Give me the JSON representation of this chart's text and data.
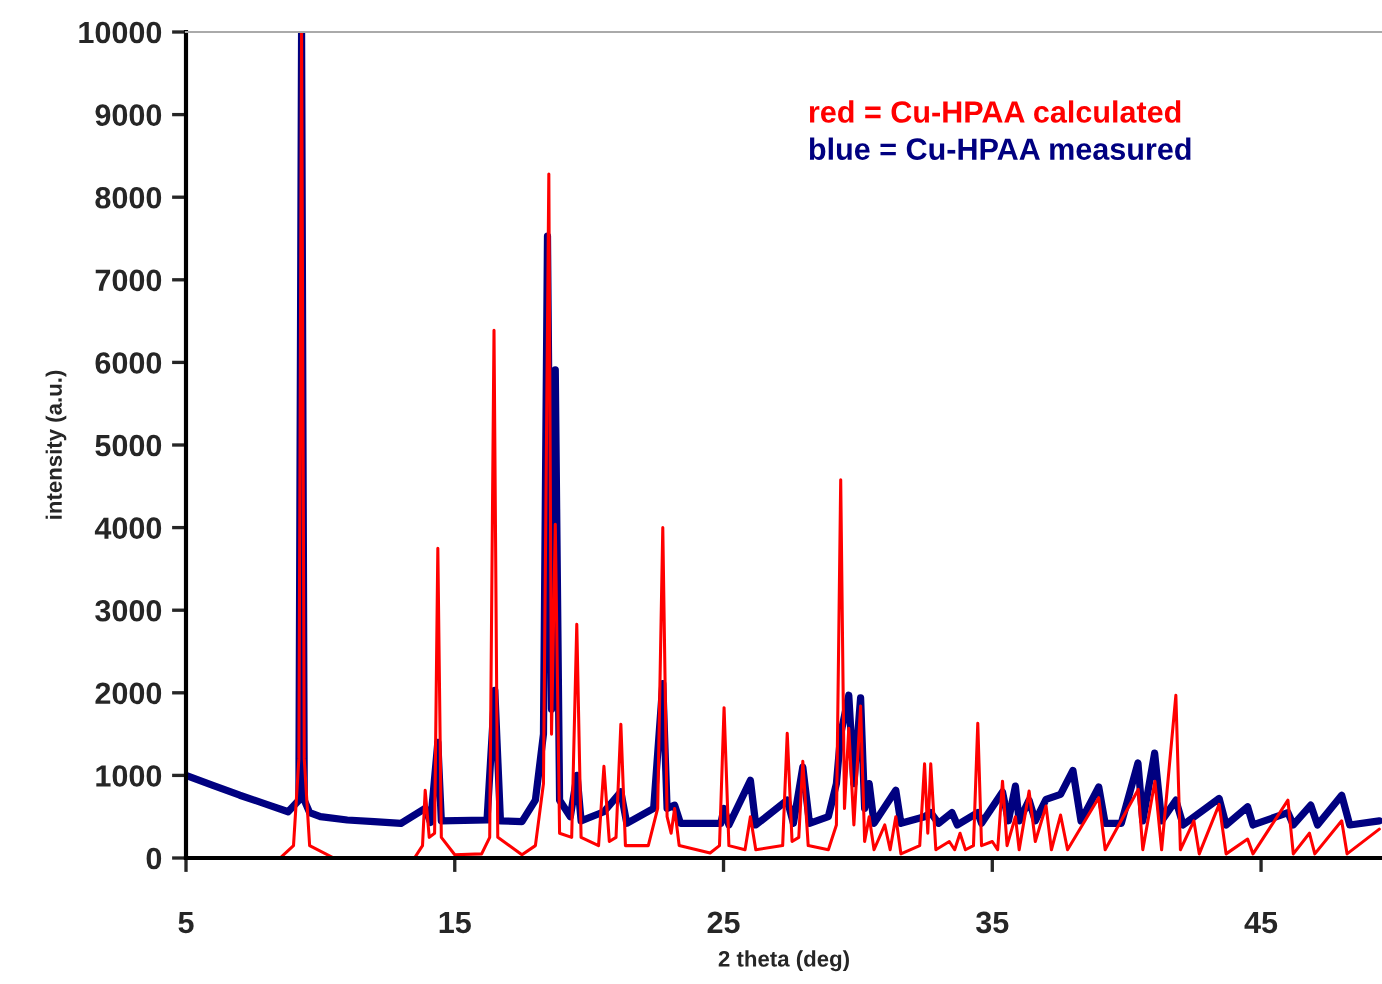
{
  "chart_data": {
    "type": "line",
    "xlabel": "2 theta (deg)",
    "ylabel": "intensity (a.u.)",
    "xlim": [
      5,
      49.5
    ],
    "xticks": [
      5,
      15,
      25,
      35,
      45
    ],
    "ylim": [
      0,
      10000
    ],
    "yticks": [
      0,
      1000,
      2000,
      3000,
      4000,
      5000,
      6000,
      7000,
      8000,
      9000,
      10000
    ],
    "grid": false,
    "legend": false,
    "marker": "none",
    "line_style": "solid",
    "annotations": [
      "red = Cu-HPAA calculated",
      "blue = Cu-HPAA measured"
    ],
    "series": [
      {
        "color": "#000080",
        "x": [
          5,
          6,
          7,
          8,
          8.8,
          9.2,
          9.3,
          9.4,
          9.6,
          10,
          11,
          12,
          13,
          13.9,
          14.1,
          14.37,
          14.5,
          16.2,
          16.49,
          16.7,
          17.5,
          18.0,
          18.3,
          18.45,
          18.6,
          18.74,
          18.9,
          19.3,
          19.55,
          19.7,
          20.55,
          21.18,
          21.4,
          22.4,
          22.74,
          22.9,
          23.18,
          23.4,
          24.9,
          25.02,
          25.2,
          26.0,
          26.2,
          27.37,
          27.6,
          27.95,
          28.2,
          28.9,
          29.2,
          29.36,
          29.66,
          29.85,
          30.1,
          30.25,
          30.42,
          30.6,
          31.41,
          31.6,
          32.48,
          32.71,
          33.0,
          33.5,
          33.7,
          34.46,
          34.6,
          35.38,
          35.6,
          35.86,
          36.0,
          36.37,
          36.6,
          37.0,
          37.54,
          38.0,
          38.3,
          38.96,
          39.2,
          39.8,
          40.42,
          40.6,
          41.04,
          41.3,
          41.83,
          42.1,
          43.44,
          43.7,
          44.5,
          44.7,
          46.0,
          46.2,
          46.85,
          47.1,
          48.0,
          48.3,
          49.4
        ],
        "values": [
          1000,
          880,
          760,
          650,
          560,
          700,
          10000,
          700,
          550,
          500,
          460,
          440,
          420,
          600,
          430,
          1400,
          450,
          460,
          2030,
          450,
          440,
          700,
          1500,
          7530,
          1800,
          5910,
          700,
          500,
          1000,
          450,
          560,
          800,
          420,
          600,
          2110,
          600,
          640,
          420,
          420,
          600,
          400,
          940,
          400,
          700,
          420,
          1100,
          420,
          500,
          900,
          1500,
          1970,
          900,
          1940,
          600,
          900,
          420,
          820,
          420,
          500,
          550,
          420,
          550,
          400,
          550,
          420,
          800,
          450,
          870,
          450,
          700,
          450,
          710,
          770,
          1060,
          450,
          860,
          420,
          420,
          1150,
          450,
          1270,
          450,
          700,
          400,
          720,
          400,
          620,
          400,
          550,
          400,
          640,
          400,
          760,
          400,
          450
        ]
      },
      {
        "color": "#ff0000",
        "x": [
          5,
          8.5,
          9.0,
          9.2,
          9.3,
          9.4,
          9.6,
          10.5,
          13.5,
          13.8,
          13.9,
          14.05,
          14.25,
          14.37,
          14.5,
          15.0,
          16.0,
          16.3,
          16.46,
          16.6,
          17.5,
          18.0,
          18.3,
          18.5,
          18.6,
          18.74,
          18.9,
          19.35,
          19.54,
          19.7,
          20.35,
          20.55,
          20.75,
          21.0,
          21.18,
          21.35,
          22.2,
          22.55,
          22.74,
          22.9,
          23.05,
          23.18,
          23.35,
          24.5,
          24.85,
          25.02,
          25.2,
          25.8,
          26.0,
          26.2,
          27.2,
          27.37,
          27.55,
          27.8,
          27.95,
          28.15,
          28.9,
          29.2,
          29.36,
          29.5,
          29.66,
          29.85,
          30.1,
          30.25,
          30.42,
          30.6,
          31.0,
          31.2,
          31.41,
          31.6,
          32.3,
          32.48,
          32.6,
          32.71,
          32.9,
          33.4,
          33.6,
          33.8,
          34.0,
          34.3,
          34.46,
          34.6,
          35.0,
          35.2,
          35.38,
          35.55,
          35.86,
          36.0,
          36.37,
          36.6,
          37.0,
          37.2,
          37.54,
          37.8,
          38.96,
          39.2,
          40.43,
          40.6,
          41.05,
          41.3,
          41.83,
          42.0,
          42.5,
          42.7,
          43.44,
          43.7,
          44.5,
          44.7,
          46.0,
          46.2,
          46.8,
          47.0,
          48.0,
          48.2,
          49.4
        ],
        "values": [
          0,
          0,
          150,
          1200,
          10000,
          1200,
          150,
          0,
          0,
          150,
          820,
          250,
          300,
          3750,
          250,
          40,
          50,
          250,
          6390,
          250,
          40,
          150,
          900,
          8280,
          1500,
          4040,
          300,
          250,
          2830,
          250,
          150,
          1110,
          200,
          250,
          1620,
          150,
          150,
          600,
          4000,
          500,
          300,
          600,
          150,
          60,
          150,
          1820,
          150,
          100,
          500,
          100,
          150,
          1510,
          200,
          250,
          1170,
          150,
          100,
          400,
          4580,
          600,
          1570,
          400,
          1840,
          200,
          500,
          100,
          400,
          100,
          500,
          50,
          150,
          1140,
          300,
          1140,
          100,
          200,
          100,
          300,
          100,
          150,
          1630,
          150,
          200,
          100,
          930,
          150,
          500,
          100,
          810,
          200,
          630,
          100,
          520,
          100,
          730,
          100,
          830,
          100,
          930,
          100,
          1970,
          100,
          450,
          50,
          650,
          50,
          230,
          50,
          700,
          50,
          300,
          50,
          450,
          50,
          350
        ]
      }
    ]
  }
}
